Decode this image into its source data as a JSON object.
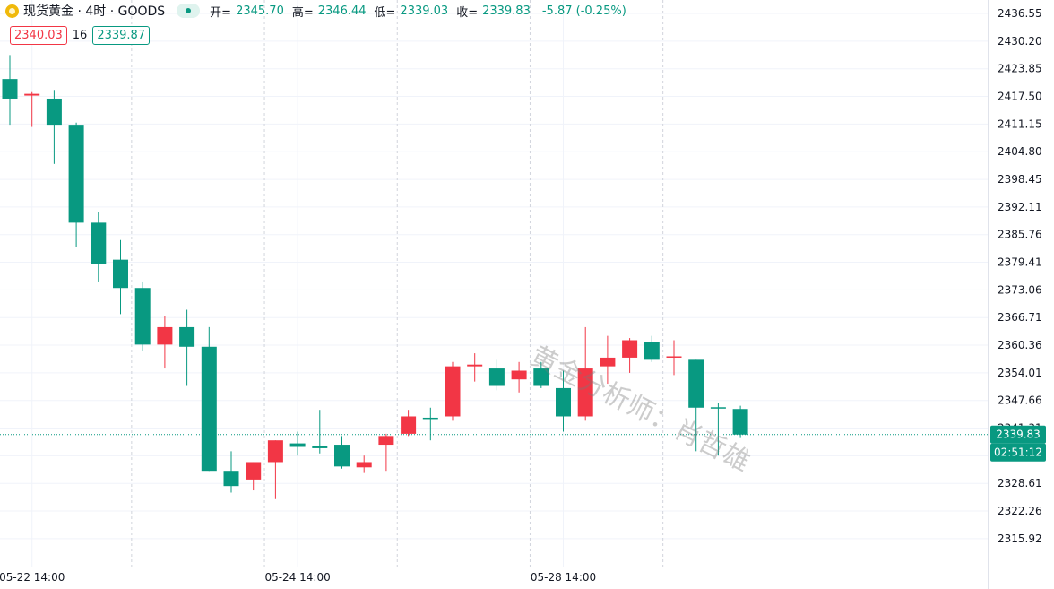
{
  "legend": {
    "symbol_icon": "gold-coin-icon",
    "title": "现货黄金 · 4时 · GOODS",
    "open_label": "开=",
    "open_value": "2345.70",
    "high_label": "高=",
    "high_value": "2346.44",
    "low_label": "低=",
    "low_value": "2339.03",
    "close_label": "收=",
    "close_value": "2339.83",
    "change": "-5.87 (-0.25%)",
    "bid": "2340.03",
    "spread": "16",
    "ask": "2339.87"
  },
  "watermark": "黄金分析师：肖哲雄",
  "colors": {
    "up": "#f23645",
    "down": "#089981",
    "grid": "#f0f3fa",
    "axis_text": "#131722"
  },
  "chart_data": {
    "type": "candlestick",
    "y_ticks": [
      "2436.55",
      "2430.20",
      "2423.85",
      "2417.50",
      "2411.15",
      "2404.80",
      "2398.45",
      "2392.11",
      "2385.76",
      "2379.41",
      "2373.06",
      "2366.71",
      "2360.36",
      "2354.01",
      "2347.66",
      "2341.31",
      "2334.96",
      "2328.61",
      "2322.26",
      "2315.92"
    ],
    "ylim": [
      2312.8,
      2438.0
    ],
    "x_labels": [
      {
        "index": 1,
        "text": "05-22 14:00"
      },
      {
        "index": 13,
        "text": "05-24 14:00"
      },
      {
        "index": 25,
        "text": "05-28 14:00"
      }
    ],
    "day_separators": [
      5.5,
      11.5,
      17.5,
      23.5,
      29.5
    ],
    "candles": [
      {
        "o": 2421.5,
        "h": 2427.0,
        "l": 2411.0,
        "c": 2417.0
      },
      {
        "o": 2417.7,
        "h": 2418.5,
        "l": 2410.5,
        "c": 2418.1
      },
      {
        "o": 2417.0,
        "h": 2419.0,
        "l": 2402.0,
        "c": 2411.0
      },
      {
        "o": 2411.0,
        "h": 2411.5,
        "l": 2383.0,
        "c": 2388.5
      },
      {
        "o": 2388.5,
        "h": 2391.0,
        "l": 2375.0,
        "c": 2379.0
      },
      {
        "o": 2380.0,
        "h": 2384.5,
        "l": 2367.5,
        "c": 2373.5
      },
      {
        "o": 2373.5,
        "h": 2375.0,
        "l": 2359.0,
        "c": 2360.5
      },
      {
        "o": 2360.5,
        "h": 2367.0,
        "l": 2355.0,
        "c": 2364.5
      },
      {
        "o": 2364.5,
        "h": 2368.5,
        "l": 2351.0,
        "c": 2360.0
      },
      {
        "o": 2360.0,
        "h": 2364.5,
        "l": 2331.5,
        "c": 2331.5
      },
      {
        "o": 2331.5,
        "h": 2336.0,
        "l": 2326.5,
        "c": 2328.0
      },
      {
        "o": 2329.5,
        "h": 2333.5,
        "l": 2327.0,
        "c": 2333.5
      },
      {
        "o": 2333.5,
        "h": 2338.5,
        "l": 2325.0,
        "c": 2338.5
      },
      {
        "o": 2337.8,
        "h": 2340.5,
        "l": 2335.0,
        "c": 2337.0
      },
      {
        "o": 2337.1,
        "h": 2345.5,
        "l": 2335.5,
        "c": 2336.7
      },
      {
        "o": 2337.5,
        "h": 2339.5,
        "l": 2332.0,
        "c": 2332.5
      },
      {
        "o": 2332.3,
        "h": 2335.0,
        "l": 2331.0,
        "c": 2333.5
      },
      {
        "o": 2337.5,
        "h": 2340.0,
        "l": 2331.5,
        "c": 2339.5
      },
      {
        "o": 2340.0,
        "h": 2345.5,
        "l": 2339.5,
        "c": 2344.0
      },
      {
        "o": 2343.7,
        "h": 2346.0,
        "l": 2338.5,
        "c": 2343.5
      },
      {
        "o": 2344.0,
        "h": 2356.5,
        "l": 2343.0,
        "c": 2355.5
      },
      {
        "o": 2355.5,
        "h": 2358.5,
        "l": 2352.0,
        "c": 2355.9
      },
      {
        "o": 2355.0,
        "h": 2357.0,
        "l": 2350.0,
        "c": 2351.0
      },
      {
        "o": 2352.5,
        "h": 2356.5,
        "l": 2349.5,
        "c": 2354.5
      },
      {
        "o": 2355.0,
        "h": 2356.5,
        "l": 2350.5,
        "c": 2351.0
      },
      {
        "o": 2350.5,
        "h": 2354.5,
        "l": 2340.5,
        "c": 2344.0
      },
      {
        "o": 2344.0,
        "h": 2364.5,
        "l": 2343.0,
        "c": 2355.0
      },
      {
        "o": 2355.5,
        "h": 2362.5,
        "l": 2351.5,
        "c": 2357.5
      },
      {
        "o": 2357.5,
        "h": 2362.0,
        "l": 2354.0,
        "c": 2361.5
      },
      {
        "o": 2361.0,
        "h": 2362.5,
        "l": 2356.5,
        "c": 2357.0
      },
      {
        "o": 2357.5,
        "h": 2361.5,
        "l": 2353.5,
        "c": 2357.8
      },
      {
        "o": 2357.0,
        "h": 2357.0,
        "l": 2336.0,
        "c": 2346.0
      },
      {
        "o": 2346.1,
        "h": 2347.0,
        "l": 2335.0,
        "c": 2345.8
      },
      {
        "o": 2345.7,
        "h": 2346.44,
        "l": 2339.03,
        "c": 2339.83
      }
    ],
    "last_price": {
      "value": 2339.83,
      "label": "2339.83",
      "countdown": "02:51:12"
    }
  }
}
